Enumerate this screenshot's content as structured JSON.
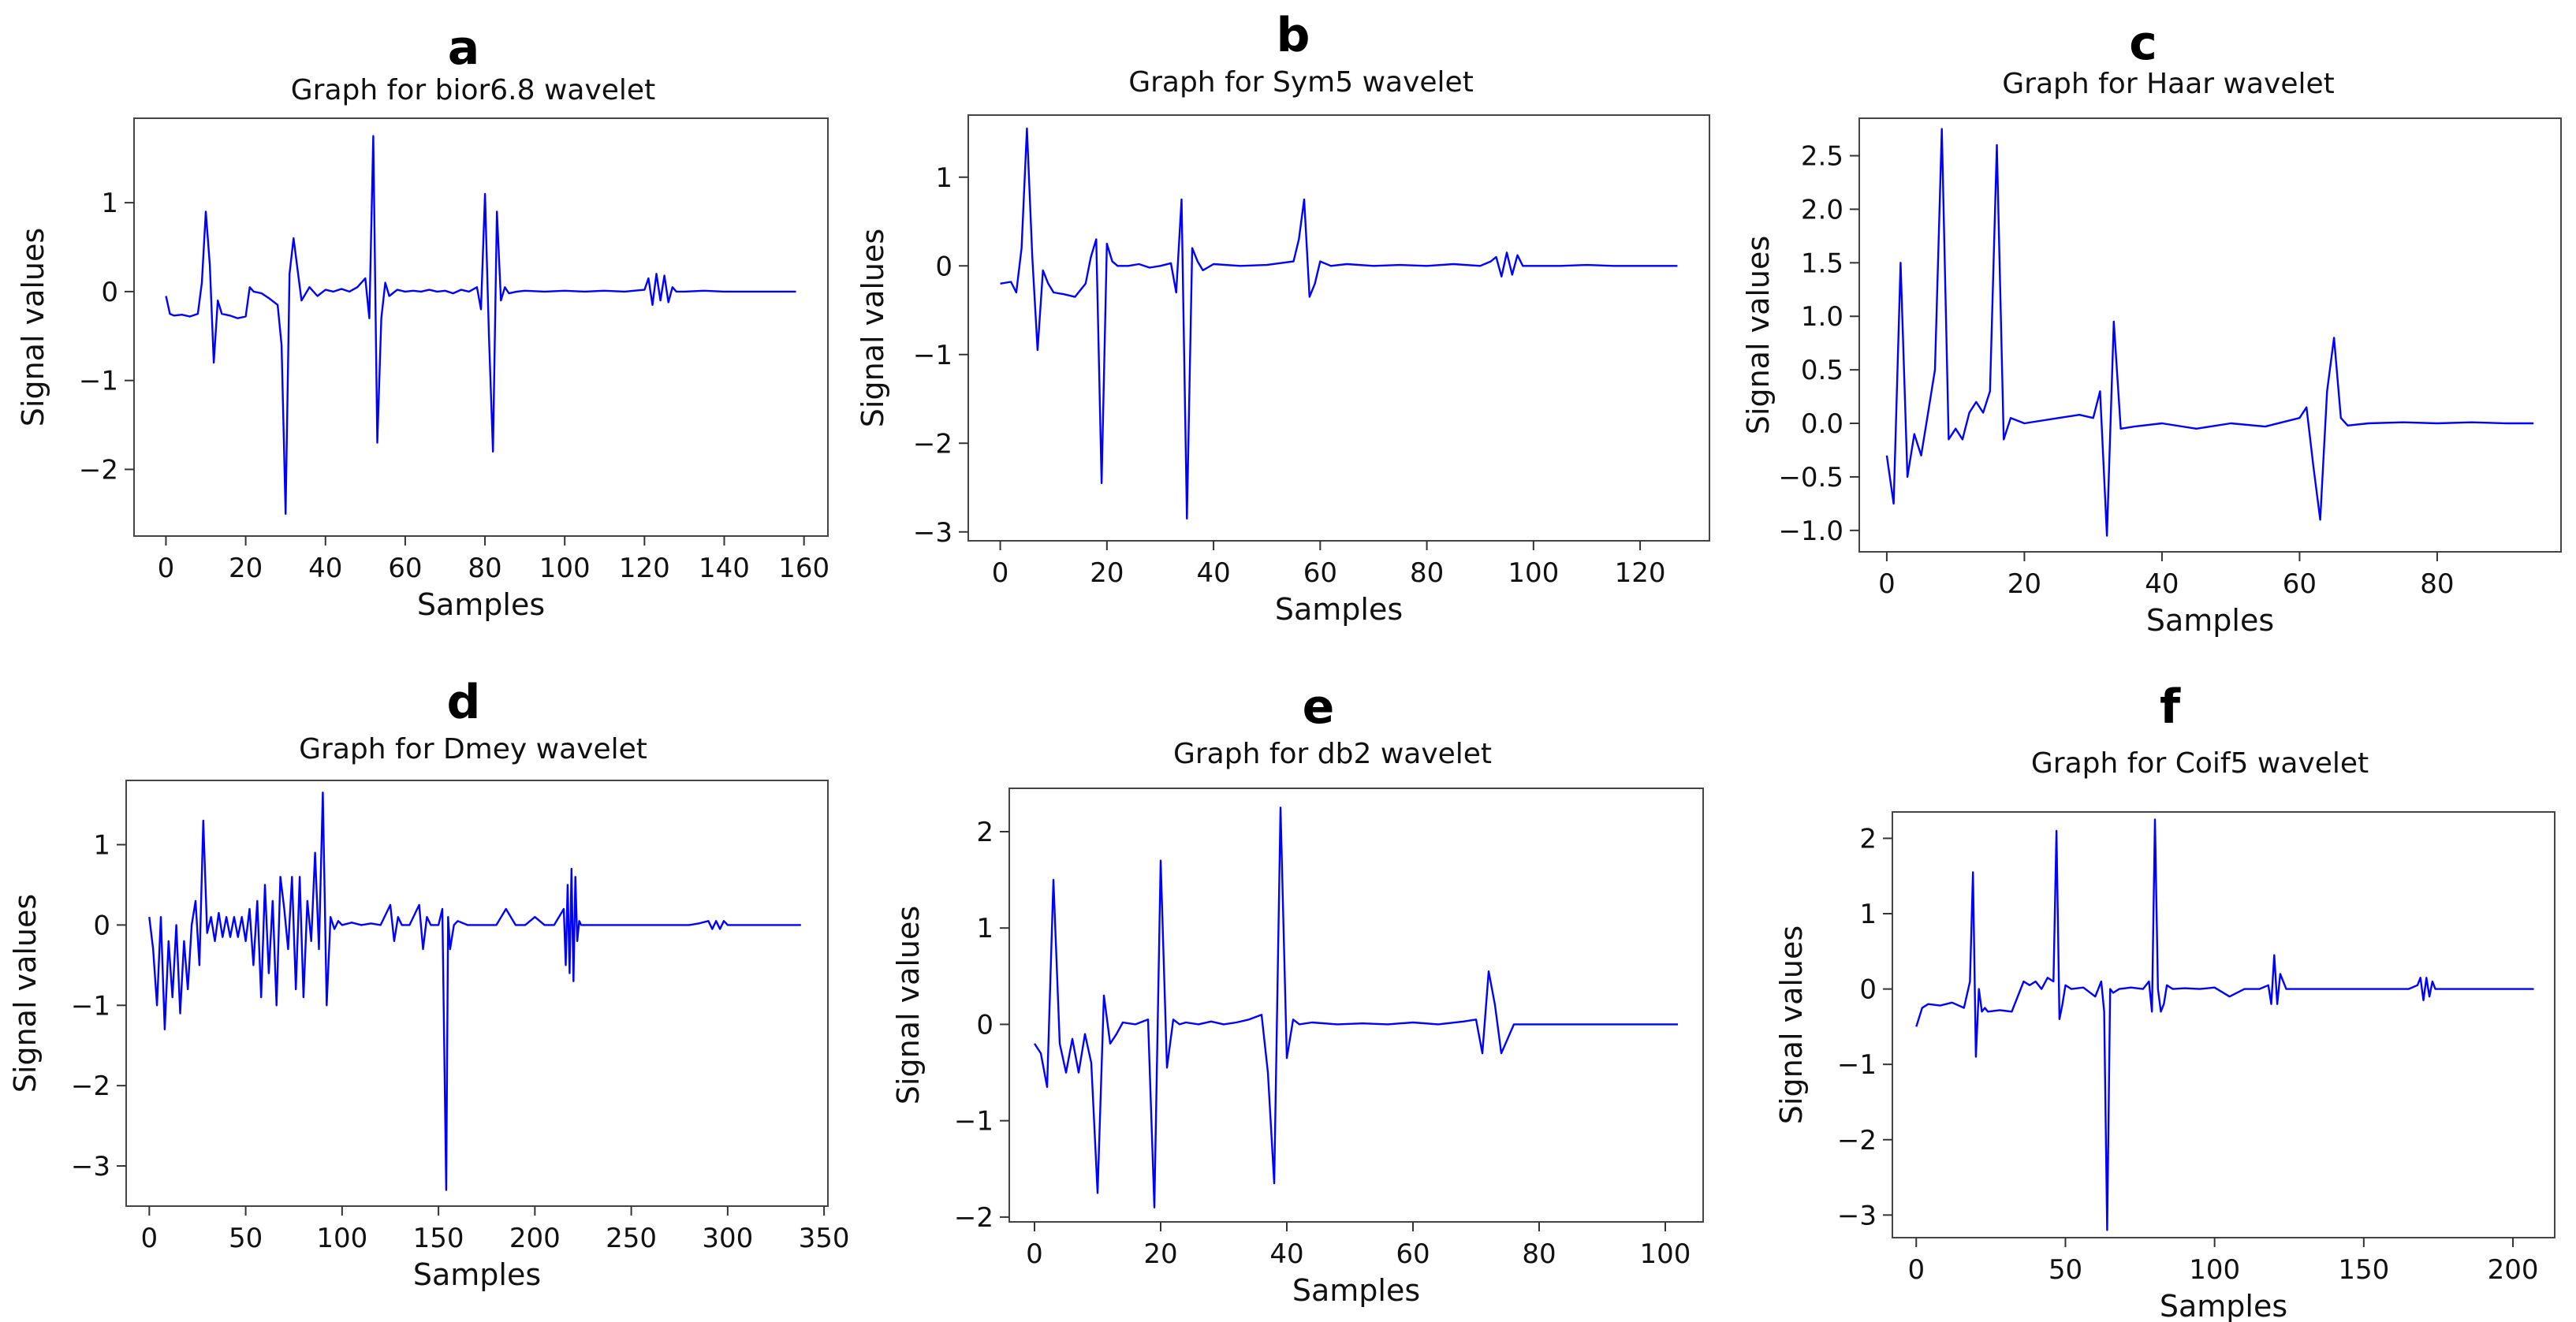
{
  "chart_data": [
    {
      "type": "line",
      "panel_label": "a",
      "title": "Graph for bior6.8 wavelet",
      "xlabel": "Samples",
      "ylabel": "Signal values",
      "xlim": [
        -8,
        166
      ],
      "ylim": [
        -2.75,
        1.95
      ],
      "xticks": [
        0,
        20,
        40,
        60,
        80,
        100,
        120,
        140,
        160
      ],
      "yticks": [
        1,
        0,
        -1,
        -2
      ],
      "line_color": "#0000ff",
      "series": [
        {
          "name": "bior6.8",
          "x": [
            0,
            1,
            2,
            4,
            6,
            8,
            9,
            10,
            11,
            12,
            13,
            14,
            16,
            18,
            20,
            21,
            22,
            24,
            26,
            28,
            29,
            30,
            31,
            32,
            34,
            36,
            38,
            40,
            42,
            44,
            46,
            48,
            50,
            51,
            52,
            53,
            54,
            55,
            56,
            58,
            60,
            62,
            64,
            66,
            68,
            70,
            72,
            74,
            76,
            78,
            79,
            80,
            81,
            82,
            83,
            84,
            85,
            86,
            88,
            90,
            95,
            100,
            105,
            110,
            115,
            120,
            121,
            122,
            123,
            124,
            125,
            126,
            127,
            128,
            130,
            135,
            140,
            145,
            150,
            155,
            158
          ],
          "y": [
            -0.05,
            -0.25,
            -0.27,
            -0.26,
            -0.28,
            -0.25,
            0.1,
            0.9,
            0.3,
            -0.8,
            -0.1,
            -0.25,
            -0.27,
            -0.3,
            -0.28,
            0.05,
            0.0,
            -0.02,
            -0.08,
            -0.15,
            -0.6,
            -2.5,
            0.2,
            0.6,
            -0.1,
            0.05,
            -0.05,
            0.02,
            0.0,
            0.03,
            0.0,
            0.05,
            0.15,
            -0.3,
            1.75,
            -1.7,
            -0.3,
            0.1,
            -0.05,
            0.02,
            0.0,
            0.01,
            0.0,
            0.02,
            0.0,
            0.01,
            -0.02,
            0.02,
            0.0,
            0.05,
            -0.2,
            1.1,
            -0.5,
            -1.8,
            0.9,
            -0.1,
            0.05,
            -0.02,
            0.0,
            0.01,
            0.0,
            0.01,
            0.0,
            0.01,
            0.0,
            0.02,
            0.15,
            -0.15,
            0.2,
            -0.1,
            0.18,
            -0.12,
            0.05,
            0.0,
            0.0,
            0.01,
            0.0,
            0.0,
            0.0,
            0.0,
            0.0
          ]
        }
      ]
    },
    {
      "type": "line",
      "panel_label": "b",
      "title": "Graph for Sym5 wavelet",
      "xlabel": "Samples",
      "ylabel": "Signal values",
      "xlim": [
        -6,
        133
      ],
      "ylim": [
        -3.1,
        1.7
      ],
      "xticks": [
        0,
        20,
        40,
        60,
        80,
        100,
        120
      ],
      "yticks": [
        1,
        0,
        -1,
        -2,
        -3
      ],
      "line_color": "#0000ff",
      "series": [
        {
          "name": "Sym5",
          "x": [
            0,
            2,
            3,
            4,
            5,
            6,
            7,
            8,
            9,
            10,
            12,
            14,
            16,
            17,
            18,
            19,
            20,
            21,
            22,
            24,
            26,
            28,
            30,
            32,
            33,
            34,
            35,
            36,
            37,
            38,
            40,
            45,
            50,
            55,
            56,
            57,
            58,
            59,
            60,
            62,
            65,
            70,
            75,
            80,
            85,
            90,
            92,
            93,
            94,
            95,
            96,
            97,
            98,
            100,
            105,
            110,
            115,
            120,
            125,
            127
          ],
          "y": [
            -0.2,
            -0.18,
            -0.3,
            0.2,
            1.55,
            0.1,
            -0.95,
            -0.05,
            -0.2,
            -0.3,
            -0.32,
            -0.35,
            -0.2,
            0.1,
            0.3,
            -2.45,
            0.25,
            0.05,
            0.0,
            0.0,
            0.02,
            -0.02,
            0.0,
            0.03,
            -0.3,
            0.75,
            -2.85,
            0.2,
            0.05,
            -0.05,
            0.02,
            0.0,
            0.01,
            0.05,
            0.3,
            0.75,
            -0.35,
            -0.2,
            0.05,
            0.0,
            0.02,
            0.0,
            0.01,
            0.0,
            0.02,
            0.0,
            0.05,
            0.1,
            -0.12,
            0.15,
            -0.1,
            0.12,
            0.0,
            0.0,
            0.0,
            0.01,
            0.0,
            0.0,
            0.0,
            0.0
          ]
        }
      ]
    },
    {
      "type": "line",
      "panel_label": "c",
      "title": "Graph for Haar wavelet",
      "xlabel": "Samples",
      "ylabel": "Signal values",
      "xlim": [
        -4,
        98
      ],
      "ylim": [
        -1.2,
        2.85
      ],
      "xticks": [
        0,
        20,
        40,
        60,
        80
      ],
      "yticks": [
        2.5,
        2.0,
        1.5,
        1.0,
        0.5,
        0.0,
        -0.5,
        -1.0
      ],
      "line_color": "#0000ff",
      "series": [
        {
          "name": "Haar",
          "x": [
            0,
            1,
            2,
            3,
            4,
            5,
            6,
            7,
            8,
            9,
            10,
            11,
            12,
            13,
            14,
            15,
            16,
            17,
            18,
            20,
            25,
            28,
            30,
            31,
            32,
            33,
            34,
            36,
            40,
            45,
            50,
            55,
            60,
            61,
            62,
            63,
            64,
            65,
            66,
            67,
            70,
            75,
            80,
            85,
            90,
            94
          ],
          "y": [
            -0.3,
            -0.75,
            1.5,
            -0.5,
            -0.1,
            -0.3,
            0.1,
            0.5,
            2.75,
            -0.15,
            -0.05,
            -0.15,
            0.1,
            0.2,
            0.1,
            0.3,
            2.6,
            -0.15,
            0.05,
            0.0,
            0.05,
            0.08,
            0.05,
            0.3,
            -1.05,
            0.95,
            -0.05,
            -0.03,
            0.0,
            -0.05,
            0.0,
            -0.03,
            0.05,
            0.15,
            -0.4,
            -0.9,
            0.3,
            0.8,
            0.05,
            -0.02,
            0.0,
            0.01,
            0.0,
            0.01,
            0.0,
            0.0
          ]
        }
      ]
    },
    {
      "type": "line",
      "panel_label": "d",
      "title": "Graph for Dmey wavelet",
      "xlabel": "Samples",
      "ylabel": "Signal values",
      "xlim": [
        -12,
        352
      ],
      "ylim": [
        -3.5,
        1.8
      ],
      "xticks": [
        0,
        50,
        100,
        150,
        200,
        250,
        300,
        350
      ],
      "yticks": [
        1,
        0,
        -1,
        -2,
        -3
      ],
      "line_color": "#0000ff",
      "series": [
        {
          "name": "Dmey",
          "x": [
            0,
            2,
            4,
            6,
            8,
            10,
            12,
            14,
            16,
            18,
            20,
            22,
            24,
            26,
            28,
            30,
            32,
            34,
            36,
            38,
            40,
            42,
            44,
            46,
            48,
            50,
            52,
            54,
            56,
            58,
            60,
            62,
            64,
            66,
            68,
            70,
            72,
            74,
            76,
            78,
            80,
            82,
            84,
            86,
            88,
            90,
            92,
            94,
            96,
            98,
            100,
            105,
            110,
            115,
            120,
            125,
            127,
            129,
            131,
            135,
            140,
            142,
            144,
            146,
            150,
            152,
            154,
            155,
            156,
            158,
            160,
            165,
            170,
            175,
            180,
            185,
            190,
            195,
            200,
            205,
            210,
            215,
            216,
            217,
            218,
            219,
            220,
            221,
            222,
            223,
            224,
            226,
            230,
            240,
            250,
            260,
            270,
            280,
            285,
            290,
            292,
            294,
            296,
            298,
            300,
            310,
            320,
            330,
            338
          ],
          "y": [
            0.1,
            -0.3,
            -1.0,
            0.1,
            -1.3,
            -0.2,
            -0.9,
            0.0,
            -1.1,
            -0.2,
            -0.8,
            0.0,
            0.3,
            -0.5,
            1.3,
            -0.1,
            0.1,
            -0.2,
            0.15,
            -0.15,
            0.1,
            -0.15,
            0.1,
            -0.15,
            0.1,
            -0.2,
            0.2,
            -0.5,
            0.3,
            -0.9,
            0.5,
            -0.6,
            0.3,
            -1.0,
            0.6,
            0.2,
            -0.3,
            0.6,
            -0.8,
            0.6,
            -0.9,
            0.3,
            -0.2,
            0.9,
            -0.3,
            1.65,
            -1.0,
            0.1,
            -0.05,
            0.05,
            0.0,
            0.03,
            0.0,
            0.02,
            0.0,
            0.25,
            -0.2,
            0.1,
            0.0,
            0.0,
            0.25,
            -0.3,
            0.1,
            0.0,
            0.0,
            0.2,
            -3.3,
            0.1,
            -0.3,
            0.0,
            0.05,
            0.0,
            0.0,
            0.0,
            0.0,
            0.2,
            0.0,
            0.0,
            0.1,
            0.0,
            0.0,
            0.2,
            -0.5,
            0.5,
            -0.6,
            0.7,
            -0.7,
            0.6,
            -0.2,
            0.05,
            0.0,
            0.0,
            0.0,
            0.0,
            0.0,
            0.0,
            0.0,
            0.0,
            0.02,
            0.05,
            -0.05,
            0.05,
            -0.05,
            0.05,
            0.0,
            0.0,
            0.0,
            0.0,
            0.0
          ]
        }
      ]
    },
    {
      "type": "line",
      "panel_label": "e",
      "title": "Graph for db2 wavelet",
      "xlabel": "Samples",
      "ylabel": "Signal values",
      "xlim": [
        -4,
        106
      ],
      "ylim": [
        -2.05,
        2.45
      ],
      "xticks": [
        0,
        20,
        40,
        60,
        80,
        100
      ],
      "yticks": [
        2,
        1,
        0,
        -1,
        -2
      ],
      "line_color": "#0000ff",
      "series": [
        {
          "name": "db2",
          "x": [
            0,
            1,
            2,
            3,
            4,
            5,
            6,
            7,
            8,
            9,
            10,
            11,
            12,
            13,
            14,
            16,
            18,
            19,
            20,
            21,
            22,
            23,
            24,
            26,
            28,
            30,
            32,
            34,
            36,
            37,
            38,
            39,
            40,
            41,
            42,
            44,
            48,
            52,
            56,
            60,
            64,
            68,
            70,
            71,
            72,
            73,
            74,
            75,
            76,
            78,
            82,
            86,
            90,
            95,
            100,
            102
          ],
          "y": [
            -0.2,
            -0.3,
            -0.65,
            1.5,
            -0.2,
            -0.5,
            -0.15,
            -0.5,
            -0.1,
            -0.4,
            -1.75,
            0.3,
            -0.2,
            -0.1,
            0.02,
            0.0,
            0.05,
            -1.9,
            1.7,
            -0.45,
            0.05,
            0.0,
            0.02,
            0.0,
            0.03,
            0.0,
            0.02,
            0.05,
            0.1,
            -0.5,
            -1.65,
            2.25,
            -0.35,
            0.05,
            0.0,
            0.02,
            0.0,
            0.01,
            0.0,
            0.02,
            0.0,
            0.03,
            0.05,
            -0.3,
            0.55,
            0.2,
            -0.3,
            -0.15,
            0.0,
            0.0,
            0.0,
            0.0,
            0.0,
            0.0,
            0.0,
            0.0
          ]
        }
      ]
    },
    {
      "type": "line",
      "panel_label": "f",
      "title": "Graph for Coif5 wavelet",
      "xlabel": "Samples",
      "ylabel": "Signal values",
      "xlim": [
        -8,
        214
      ],
      "ylim": [
        -3.3,
        2.35
      ],
      "xticks": [
        0,
        50,
        100,
        150,
        200
      ],
      "yticks": [
        2,
        1,
        0,
        -1,
        -2,
        -3
      ],
      "line_color": "#0000ff",
      "series": [
        {
          "name": "Coif5",
          "x": [
            0,
            2,
            4,
            8,
            12,
            16,
            18,
            19,
            20,
            21,
            22,
            23,
            24,
            28,
            32,
            36,
            38,
            40,
            42,
            44,
            46,
            47,
            48,
            49,
            50,
            52,
            56,
            60,
            62,
            63,
            64,
            65,
            66,
            68,
            72,
            76,
            78,
            79,
            80,
            81,
            82,
            83,
            84,
            86,
            90,
            95,
            100,
            105,
            110,
            115,
            118,
            119,
            120,
            121,
            122,
            124,
            128,
            135,
            140,
            150,
            160,
            165,
            168,
            169,
            170,
            171,
            172,
            173,
            174,
            180,
            190,
            200,
            207
          ],
          "y": [
            -0.5,
            -0.25,
            -0.2,
            -0.22,
            -0.18,
            -0.25,
            0.1,
            1.55,
            -0.9,
            0.0,
            -0.3,
            -0.25,
            -0.3,
            -0.28,
            -0.3,
            0.1,
            0.05,
            0.1,
            0.0,
            0.15,
            0.1,
            2.1,
            -0.4,
            -0.2,
            0.05,
            0.0,
            0.02,
            -0.1,
            0.1,
            -0.3,
            -3.2,
            0.0,
            -0.05,
            0.0,
            0.02,
            0.0,
            0.1,
            -0.3,
            2.25,
            0.0,
            -0.3,
            -0.2,
            0.05,
            0.0,
            0.01,
            0.0,
            0.02,
            -0.1,
            0.0,
            0.0,
            0.05,
            -0.2,
            0.45,
            -0.2,
            0.2,
            0.0,
            0.0,
            0.0,
            0.0,
            0.0,
            0.0,
            0.0,
            0.05,
            0.15,
            -0.15,
            0.15,
            -0.1,
            0.1,
            0.0,
            0.0,
            0.0,
            0.0,
            0.0
          ]
        }
      ]
    }
  ]
}
